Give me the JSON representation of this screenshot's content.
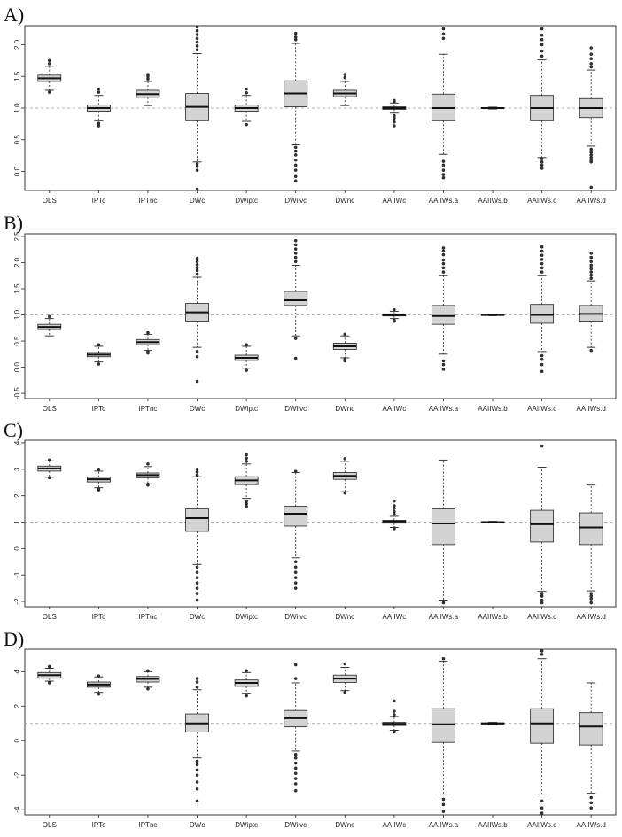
{
  "figure": {
    "categories": [
      "OLS",
      "IPTc",
      "IPTnc",
      "DWc",
      "DWiptc",
      "DWiivc",
      "DWnc",
      "AAIIWc",
      "AAIIWs.a",
      "AAIIWs.b",
      "AAIIWs.c",
      "AAIIWs.d"
    ]
  },
  "chart_data": [
    {
      "type": "box",
      "panel_label": "A)",
      "categories": [
        "OLS",
        "IPTc",
        "IPTnc",
        "DWc",
        "DWiptc",
        "DWiivc",
        "DWnc",
        "AAIIWc",
        "AAIIWs.a",
        "AAIIWs.b",
        "AAIIWs.c",
        "AAIIWs.d"
      ],
      "yticks": [
        0.0,
        0.5,
        1.0,
        1.5,
        2.0
      ],
      "ytick_labels": [
        "0.0",
        "0.5",
        "1.0",
        "1.5",
        "2.0"
      ],
      "ylim": [
        -0.3,
        2.3
      ],
      "reference_line": 1.0,
      "boxes": [
        {
          "q1": 1.42,
          "median": 1.47,
          "q3": 1.52,
          "whisker_low": 1.28,
          "whisker_high": 1.66,
          "outliers": [
            1.25,
            1.7,
            1.75
          ]
        },
        {
          "q1": 0.95,
          "median": 1.0,
          "q3": 1.05,
          "whisker_low": 0.8,
          "whisker_high": 1.2,
          "outliers": [
            0.72,
            0.76,
            1.25,
            1.3
          ]
        },
        {
          "q1": 1.17,
          "median": 1.22,
          "q3": 1.28,
          "whisker_low": 1.04,
          "whisker_high": 1.42,
          "outliers": [
            1.46,
            1.5,
            1.53
          ]
        },
        {
          "q1": 0.8,
          "median": 1.02,
          "q3": 1.23,
          "whisker_low": 0.15,
          "whisker_high": 1.86,
          "outliers": [
            -0.28,
            0.02,
            0.08,
            0.12,
            1.92,
            1.98,
            2.04,
            2.1,
            2.16,
            2.22,
            2.28
          ]
        },
        {
          "q1": 0.95,
          "median": 1.0,
          "q3": 1.05,
          "whisker_low": 0.79,
          "whisker_high": 1.2,
          "outliers": [
            0.74,
            1.24,
            1.3
          ]
        },
        {
          "q1": 1.02,
          "median": 1.23,
          "q3": 1.43,
          "whisker_low": 0.42,
          "whisker_high": 2.02,
          "outliers": [
            -0.15,
            -0.08,
            0.02,
            0.1,
            0.18,
            0.26,
            0.32,
            0.38,
            2.08,
            2.12,
            2.18
          ]
        },
        {
          "q1": 1.18,
          "median": 1.23,
          "q3": 1.28,
          "whisker_low": 1.04,
          "whisker_high": 1.42,
          "outliers": [
            1.48,
            1.53
          ]
        },
        {
          "q1": 0.98,
          "median": 1.0,
          "q3": 1.02,
          "whisker_low": 0.92,
          "whisker_high": 1.08,
          "outliers": [
            0.72,
            0.78,
            0.84,
            0.88,
            1.1,
            1.12
          ]
        },
        {
          "q1": 0.8,
          "median": 1.0,
          "q3": 1.22,
          "whisker_low": 0.27,
          "whisker_high": 1.85,
          "outliers": [
            -0.1,
            -0.05,
            0.02,
            0.1,
            0.16,
            2.1,
            2.17,
            2.25
          ]
        },
        {
          "q1": 0.995,
          "median": 1.0,
          "q3": 1.005,
          "whisker_low": 0.985,
          "whisker_high": 1.015,
          "outliers": []
        },
        {
          "q1": 0.8,
          "median": 1.0,
          "q3": 1.2,
          "whisker_low": 0.22,
          "whisker_high": 1.76,
          "outliers": [
            0.05,
            0.1,
            0.15,
            0.2,
            1.82,
            1.9,
            2.0,
            2.08,
            2.15,
            2.25
          ]
        },
        {
          "q1": 0.85,
          "median": 1.0,
          "q3": 1.15,
          "whisker_low": 0.4,
          "whisker_high": 1.6,
          "outliers": [
            -0.25,
            0.15,
            0.18,
            0.22,
            0.26,
            0.3,
            0.35,
            1.65,
            1.7,
            1.78,
            1.85,
            1.95
          ]
        }
      ]
    },
    {
      "type": "box",
      "panel_label": "B)",
      "categories": [
        "OLS",
        "IPTc",
        "IPTnc",
        "DWc",
        "DWiptc",
        "DWiivc",
        "DWnc",
        "AAIIWc",
        "AAIIWs.a",
        "AAIIWs.b",
        "AAIIWs.c",
        "AAIIWs.d"
      ],
      "yticks": [
        -0.5,
        0.0,
        0.5,
        1.0,
        1.5,
        2.0,
        2.5
      ],
      "ytick_labels": [
        "-0.5",
        "0.0",
        "0.5",
        "1.0",
        "1.5",
        "2.0",
        "2.5"
      ],
      "ylim": [
        -0.6,
        2.55
      ],
      "reference_line": 1.0,
      "boxes": [
        {
          "q1": 0.72,
          "median": 0.77,
          "q3": 0.82,
          "whisker_low": 0.6,
          "whisker_high": 0.93,
          "outliers": [
            0.97
          ]
        },
        {
          "q1": 0.2,
          "median": 0.24,
          "q3": 0.28,
          "whisker_low": 0.1,
          "whisker_high": 0.4,
          "outliers": [
            0.06,
            0.43
          ]
        },
        {
          "q1": 0.43,
          "median": 0.48,
          "q3": 0.53,
          "whisker_low": 0.32,
          "whisker_high": 0.63,
          "outliers": [
            0.27,
            0.3,
            0.66
          ]
        },
        {
          "q1": 0.88,
          "median": 1.05,
          "q3": 1.22,
          "whisker_low": 0.38,
          "whisker_high": 1.72,
          "outliers": [
            -0.27,
            0.2,
            0.3,
            1.78,
            1.85,
            1.9,
            1.96,
            2.02,
            2.08
          ]
        },
        {
          "q1": 0.13,
          "median": 0.18,
          "q3": 0.23,
          "whisker_low": -0.02,
          "whisker_high": 0.4,
          "outliers": [
            -0.06,
            0.43
          ]
        },
        {
          "q1": 1.18,
          "median": 1.28,
          "q3": 1.45,
          "whisker_low": 0.6,
          "whisker_high": 1.95,
          "outliers": [
            0.17,
            0.55,
            2.02,
            2.1,
            2.18,
            2.26,
            2.34,
            2.42
          ]
        },
        {
          "q1": 0.34,
          "median": 0.4,
          "q3": 0.46,
          "whisker_low": 0.18,
          "whisker_high": 0.6,
          "outliers": [
            0.12,
            0.15,
            0.63
          ]
        },
        {
          "q1": 0.98,
          "median": 1.0,
          "q3": 1.02,
          "whisker_low": 0.93,
          "whisker_high": 1.07,
          "outliers": [
            0.88,
            0.9,
            1.1
          ]
        },
        {
          "q1": 0.82,
          "median": 0.98,
          "q3": 1.18,
          "whisker_low": 0.25,
          "whisker_high": 1.75,
          "outliers": [
            -0.04,
            0.05,
            0.12,
            1.82,
            1.9,
            1.98,
            2.05,
            2.15,
            2.22,
            2.28
          ]
        },
        {
          "q1": 0.995,
          "median": 1.0,
          "q3": 1.005,
          "whisker_low": 0.985,
          "whisker_high": 1.015,
          "outliers": []
        },
        {
          "q1": 0.84,
          "median": 1.0,
          "q3": 1.2,
          "whisker_low": 0.3,
          "whisker_high": 1.75,
          "outliers": [
            -0.08,
            0.05,
            0.15,
            0.22,
            1.82,
            1.9,
            1.98,
            2.06,
            2.14,
            2.22,
            2.3
          ]
        },
        {
          "q1": 0.88,
          "median": 1.02,
          "q3": 1.18,
          "whisker_low": 0.38,
          "whisker_high": 1.65,
          "outliers": [
            0.32,
            1.7,
            1.76,
            1.82,
            1.88,
            1.95,
            2.02,
            2.1,
            2.18
          ]
        }
      ]
    },
    {
      "type": "box",
      "panel_label": "C)",
      "categories": [
        "OLS",
        "IPTc",
        "IPTnc",
        "DWc",
        "DWiptc",
        "DWiivc",
        "DWnc",
        "AAIIWc",
        "AAIIWs.a",
        "AAIIWs.b",
        "AAIIWs.c",
        "AAIIWs.d"
      ],
      "yticks": [
        -2,
        -1,
        0,
        1,
        2,
        3,
        4
      ],
      "ytick_labels": [
        "-2",
        "-1",
        "0",
        "1",
        "2",
        "3",
        "4"
      ],
      "ylim": [
        -2.2,
        4.1
      ],
      "reference_line": 1.0,
      "boxes": [
        {
          "q1": 2.93,
          "median": 3.03,
          "q3": 3.12,
          "whisker_low": 2.7,
          "whisker_high": 3.32,
          "outliers": [
            2.68,
            3.35
          ]
        },
        {
          "q1": 2.52,
          "median": 2.62,
          "q3": 2.7,
          "whisker_low": 2.3,
          "whisker_high": 2.93,
          "outliers": [
            2.22,
            2.26,
            3.0
          ]
        },
        {
          "q1": 2.68,
          "median": 2.78,
          "q3": 2.86,
          "whisker_low": 2.45,
          "whisker_high": 3.1,
          "outliers": [
            2.4,
            2.43,
            3.2
          ]
        },
        {
          "q1": 0.65,
          "median": 1.15,
          "q3": 1.5,
          "whisker_low": -0.6,
          "whisker_high": 2.72,
          "outliers": [
            -1.95,
            -1.7,
            -1.5,
            -1.3,
            -1.1,
            -0.9,
            -0.7,
            2.78,
            2.9,
            3.0
          ]
        },
        {
          "q1": 2.42,
          "median": 2.58,
          "q3": 2.72,
          "whisker_low": 1.9,
          "whisker_high": 3.2,
          "outliers": [
            1.6,
            1.7,
            1.8,
            3.3,
            3.42,
            3.55
          ]
        },
        {
          "q1": 0.85,
          "median": 1.32,
          "q3": 1.6,
          "whisker_low": -0.35,
          "whisker_high": 2.88,
          "outliers": [
            -1.5,
            -1.3,
            -1.1,
            -0.9,
            -0.7,
            -0.5,
            2.92
          ]
        },
        {
          "q1": 2.62,
          "median": 2.75,
          "q3": 2.88,
          "whisker_low": 2.15,
          "whisker_high": 3.3,
          "outliers": [
            2.1,
            3.4
          ]
        },
        {
          "q1": 0.96,
          "median": 1.02,
          "q3": 1.07,
          "whisker_low": 0.8,
          "whisker_high": 1.22,
          "outliers": [
            0.75,
            0.78,
            1.3,
            1.4,
            1.52,
            1.62,
            1.8
          ]
        },
        {
          "q1": 0.15,
          "median": 0.95,
          "q3": 1.5,
          "whisker_low": -1.95,
          "whisker_high": 3.35,
          "outliers": [
            -2.05
          ]
        },
        {
          "q1": 0.99,
          "median": 1.0,
          "q3": 1.01,
          "whisker_low": 0.97,
          "whisker_high": 1.03,
          "outliers": []
        },
        {
          "q1": 0.25,
          "median": 0.92,
          "q3": 1.45,
          "whisker_low": -1.62,
          "whisker_high": 3.08,
          "outliers": [
            -2.05,
            -1.95,
            -1.8,
            -1.7,
            3.88
          ]
        },
        {
          "q1": 0.15,
          "median": 0.8,
          "q3": 1.35,
          "whisker_low": -1.6,
          "whisker_high": 2.4,
          "outliers": [
            -2.05,
            -1.9,
            -1.8,
            -1.7
          ]
        }
      ]
    },
    {
      "type": "box",
      "panel_label": "D)",
      "categories": [
        "OLS",
        "IPTc",
        "IPTnc",
        "DWc",
        "DWiptc",
        "DWiivc",
        "DWnc",
        "AAIIWc",
        "AAIIWs.a",
        "AAIIWs.b",
        "AAIIWs.c",
        "AAIIWs.d"
      ],
      "yticks": [
        -4,
        -2,
        0,
        2,
        4
      ],
      "ytick_labels": [
        "-4",
        "-2",
        "0",
        "2",
        "4"
      ],
      "ylim": [
        -4.3,
        5.3
      ],
      "reference_line": 1.0,
      "boxes": [
        {
          "q1": 3.62,
          "median": 3.8,
          "q3": 3.95,
          "whisker_low": 3.45,
          "whisker_high": 4.2,
          "outliers": [
            3.35,
            4.3
          ]
        },
        {
          "q1": 3.1,
          "median": 3.25,
          "q3": 3.4,
          "whisker_low": 2.8,
          "whisker_high": 3.7,
          "outliers": [
            2.7,
            3.75
          ]
        },
        {
          "q1": 3.4,
          "median": 3.58,
          "q3": 3.72,
          "whisker_low": 3.1,
          "whisker_high": 4.0,
          "outliers": [
            3.0,
            4.05
          ]
        },
        {
          "q1": 0.5,
          "median": 1.0,
          "q3": 1.55,
          "whisker_low": -1.0,
          "whisker_high": 2.95,
          "outliers": [
            -3.5,
            -2.8,
            -2.4,
            -2.0,
            -1.7,
            -1.4,
            -1.2,
            3.1,
            3.4,
            3.6
          ]
        },
        {
          "q1": 3.15,
          "median": 3.35,
          "q3": 3.52,
          "whisker_low": 2.75,
          "whisker_high": 3.95,
          "outliers": [
            2.6,
            4.05
          ]
        },
        {
          "q1": 0.8,
          "median": 1.3,
          "q3": 1.75,
          "whisker_low": -0.6,
          "whisker_high": 3.35,
          "outliers": [
            -2.9,
            -2.5,
            -2.2,
            -1.9,
            -1.6,
            -1.3,
            -1.0,
            -0.8,
            3.6,
            4.4
          ]
        },
        {
          "q1": 3.38,
          "median": 3.6,
          "q3": 3.8,
          "whisker_low": 2.9,
          "whisker_high": 4.25,
          "outliers": [
            2.8,
            4.45
          ]
        },
        {
          "q1": 0.88,
          "median": 0.98,
          "q3": 1.06,
          "whisker_low": 0.6,
          "whisker_high": 1.4,
          "outliers": [
            0.5,
            0.55,
            1.5,
            1.7,
            2.3
          ]
        },
        {
          "q1": -0.1,
          "median": 0.95,
          "q3": 1.85,
          "whisker_low": -3.1,
          "whisker_high": 4.6,
          "outliers": [
            -4.1,
            -3.7,
            -3.4,
            4.75
          ]
        },
        {
          "q1": 0.97,
          "median": 1.0,
          "q3": 1.03,
          "whisker_low": 0.94,
          "whisker_high": 1.06,
          "outliers": []
        },
        {
          "q1": -0.15,
          "median": 1.0,
          "q3": 1.85,
          "whisker_low": -3.1,
          "whisker_high": 4.75,
          "outliers": [
            -4.2,
            -3.9,
            -3.5,
            5.0,
            5.2
          ]
        },
        {
          "q1": -0.25,
          "median": 0.82,
          "q3": 1.62,
          "whisker_low": -3.05,
          "whisker_high": 3.35,
          "outliers": [
            -3.9,
            -3.6,
            -3.3
          ]
        }
      ]
    }
  ]
}
